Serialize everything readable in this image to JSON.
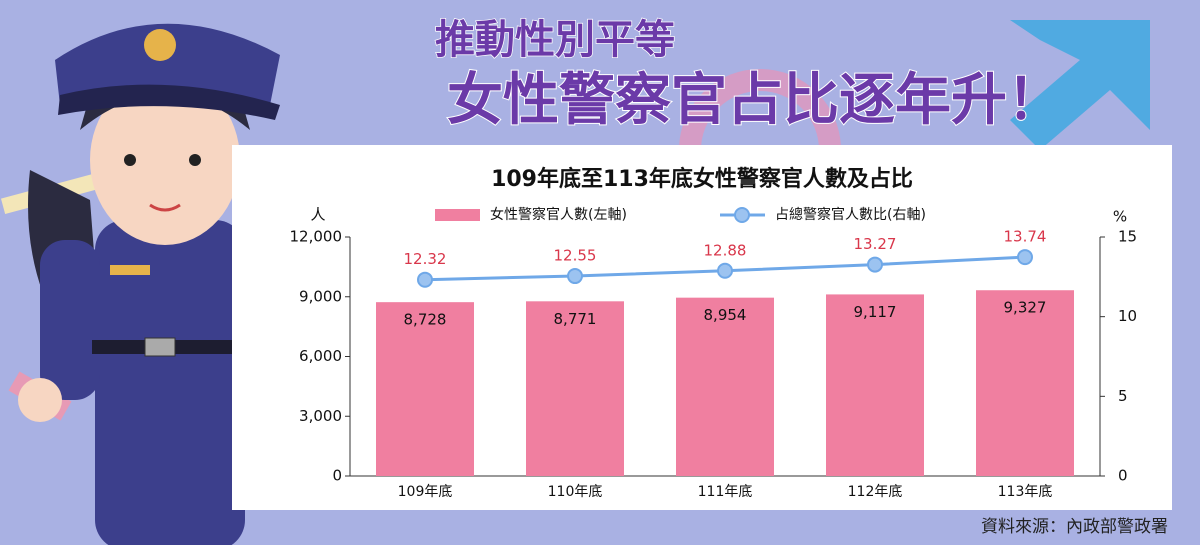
{
  "header": {
    "line1": "推動性別平等",
    "line2": "女性警察官占比逐年升！"
  },
  "chart_data": {
    "type": "bar",
    "title": "109年底至113年底女性警察官人數及占比",
    "y_unit": "人",
    "y2_unit": "%",
    "categories": [
      "109年底",
      "110年底",
      "111年底",
      "112年底",
      "113年底"
    ],
    "series": [
      {
        "name": "女性警察官人數(左軸)",
        "type": "bar",
        "color": "#f07fa0",
        "values": [
          8728,
          8771,
          8954,
          9117,
          9327
        ],
        "value_labels": [
          "8,728",
          "8,771",
          "8,954",
          "9,117",
          "9,327"
        ]
      },
      {
        "name": "占總警察官人數比(右軸)",
        "type": "line",
        "axis": "y2",
        "color": "#6fa8e8",
        "values": [
          12.32,
          12.55,
          12.88,
          13.27,
          13.74
        ]
      }
    ],
    "ylim": [
      0,
      12000
    ],
    "yticks": [
      0,
      {
        "value": 3000,
        "label": "3,000"
      },
      {
        "value": 6000,
        "label": "6,000"
      },
      {
        "value": 9000,
        "label": "9,000"
      },
      {
        "value": 12000,
        "label": "12,000"
      }
    ],
    "y2lim": [
      0,
      15
    ],
    "y2ticks": [
      0,
      5,
      10,
      15
    ],
    "source": "資料來源：內政部警政署"
  }
}
